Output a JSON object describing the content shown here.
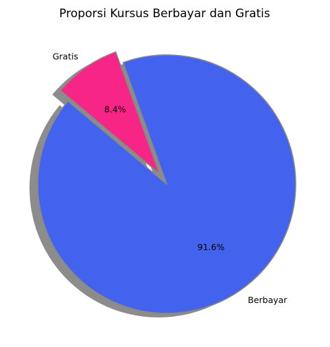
{
  "chart_data": {
    "type": "pie",
    "title": "Proporsi Kursus Berbayar dan Gratis",
    "slices": [
      {
        "label": "Berbayar",
        "value": 91.6,
        "pct_label": "91.6%",
        "color": "#4363ee",
        "explode": false
      },
      {
        "label": "Gratis",
        "value": 8.4,
        "pct_label": "8.4%",
        "color": "#f72686",
        "explode": true
      }
    ],
    "start_angle_deg": 140,
    "shadow": true,
    "edge_color": "#888888"
  }
}
